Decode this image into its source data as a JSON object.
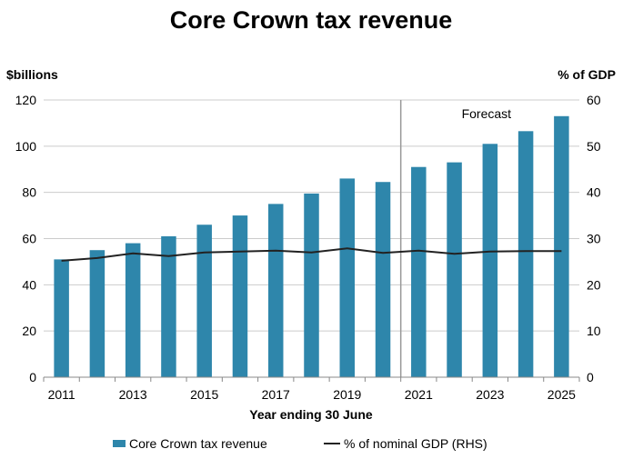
{
  "chart_data": {
    "type": "bar",
    "title": "Core Crown tax revenue",
    "ylabel_left": "$billions",
    "ylabel_right": "% of GDP",
    "xlabel": "Year ending 30 June",
    "categories": [
      "2011",
      "2012",
      "2013",
      "2014",
      "2015",
      "2016",
      "2017",
      "2018",
      "2019",
      "2020",
      "2021",
      "2022",
      "2023",
      "2024",
      "2025"
    ],
    "x_tick_labels": [
      "2011",
      "2013",
      "2015",
      "2017",
      "2019",
      "2021",
      "2023",
      "2025"
    ],
    "ylim_left": [
      0,
      120
    ],
    "ylim_right": [
      0,
      60
    ],
    "yticks_left": [
      "0",
      "20",
      "40",
      "60",
      "80",
      "100",
      "120"
    ],
    "yticks_right": [
      "0",
      "10",
      "20",
      "30",
      "40",
      "50",
      "60"
    ],
    "grid": true,
    "legend_position": "bottom",
    "forecast_label": "Forecast",
    "forecast_after": "2020",
    "colors": {
      "bar": "#2e86ab",
      "line": "#222222",
      "grid": "#cccccc",
      "divider": "#999999"
    },
    "series": [
      {
        "name": "Core Crown tax revenue",
        "type": "bar",
        "axis": "left",
        "values": [
          51,
          55,
          58,
          61,
          66,
          70,
          75,
          79.5,
          86,
          84.5,
          91,
          93,
          101,
          106.5,
          113
        ]
      },
      {
        "name": "% of nominal GDP (RHS)",
        "type": "line",
        "axis": "right",
        "values": [
          25.2,
          25.8,
          26.8,
          26.2,
          27.0,
          27.2,
          27.4,
          27.0,
          27.9,
          26.9,
          27.4,
          26.7,
          27.2,
          27.3,
          27.3
        ]
      }
    ]
  }
}
